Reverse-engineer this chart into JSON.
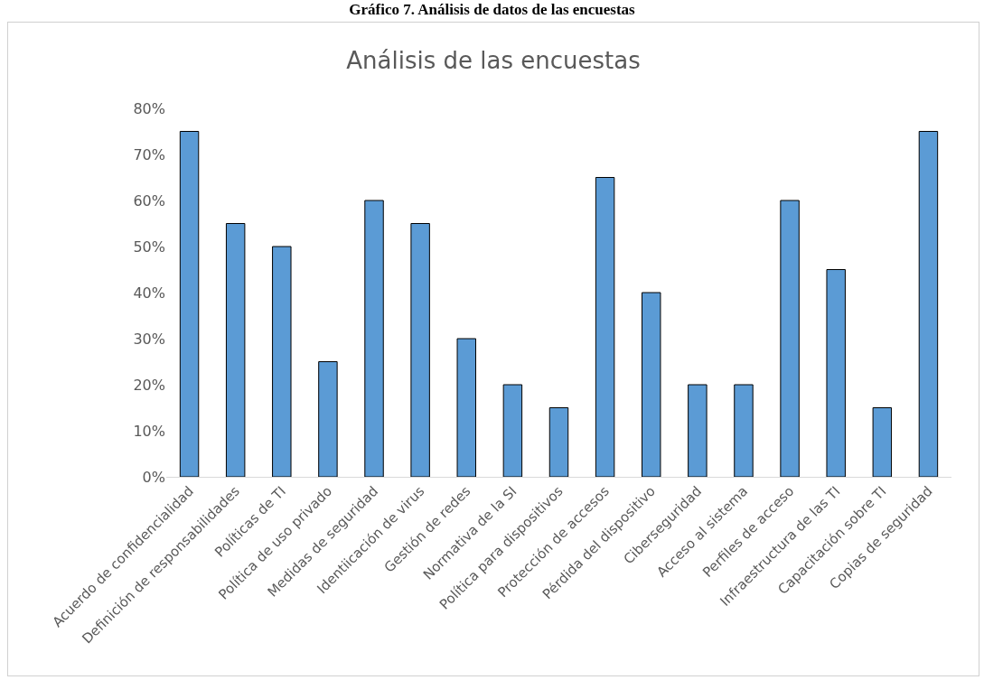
{
  "chart_data": {
    "type": "bar",
    "title": "Gráfico 7. Análisis de datos de las encuestas",
    "subtitle": "Análisis de las encuestas",
    "categories": [
      "Acuerdo de confidencialidad",
      "Definición de responsabilidades",
      "Políticas de TI",
      "Política de uso privado",
      "Medidas de seguridad",
      "Identiicación de virus",
      "Gestión de redes",
      "Normativa de la SI",
      "Política para dispositivos",
      "Protección de accesos",
      "Pérdida del dispositivo",
      "Ciberseguridad",
      "Acceso al sistema",
      "Perfiles de acceso",
      "Infraestructura de las TI",
      "Capacitación sobre TI",
      "Copias de seguridad"
    ],
    "values": [
      75,
      55,
      50,
      25,
      60,
      55,
      30,
      20,
      15,
      65,
      40,
      20,
      20,
      60,
      45,
      15,
      75
    ],
    "color": "#5b9bd5",
    "ylim": [
      0,
      80
    ],
    "yticks": [
      {
        "value": 0,
        "label": "0%"
      },
      {
        "value": 10,
        "label": "10%"
      },
      {
        "value": 20,
        "label": "20%"
      },
      {
        "value": 30,
        "label": "30%"
      },
      {
        "value": 40,
        "label": "40%"
      },
      {
        "value": 50,
        "label": "50%"
      },
      {
        "value": 60,
        "label": "60%"
      },
      {
        "value": 70,
        "label": "70%"
      },
      {
        "value": 80,
        "label": "80%"
      }
    ],
    "grid": false
  }
}
